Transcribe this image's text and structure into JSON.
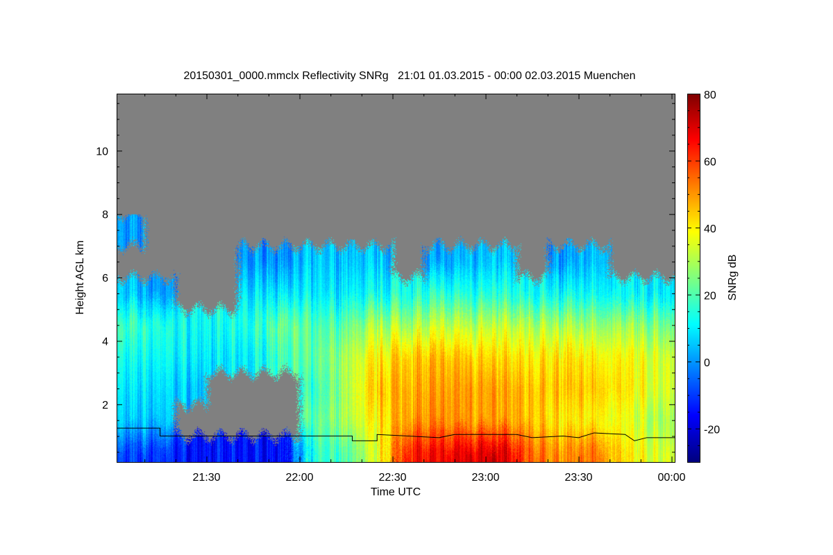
{
  "chart_data": {
    "type": "heatmap",
    "title": "20150301_0000.mmclx Reflectivity SNRg   21:01 01.03.2015 - 00:00 02.03.2015 Muenchen",
    "xlabel": "Time UTC",
    "ylabel": "Height AGL km",
    "colorbar_label": "SNRg dB",
    "x_range_minutes_after_2100": [
      1,
      181
    ],
    "y_range_km": [
      0.18,
      11.8
    ],
    "x_ticks": [
      {
        "label": "21:30",
        "min": 30
      },
      {
        "label": "22:00",
        "min": 60
      },
      {
        "label": "22:30",
        "min": 90
      },
      {
        "label": "23:00",
        "min": 120
      },
      {
        "label": "23:30",
        "min": 150
      },
      {
        "label": "00:00",
        "min": 180
      }
    ],
    "y_ticks": [
      {
        "label": "2",
        "km": 2
      },
      {
        "label": "4",
        "km": 4
      },
      {
        "label": "6",
        "km": 6
      },
      {
        "label": "8",
        "km": 8
      },
      {
        "label": "10",
        "km": 10
      }
    ],
    "colorbar_range": [
      -30,
      80
    ],
    "colorbar_ticks": [
      {
        "label": "80",
        "v": 80
      },
      {
        "label": "60",
        "v": 60
      },
      {
        "label": "40",
        "v": 40
      },
      {
        "label": "20",
        "v": 20
      },
      {
        "label": "0",
        "v": 0
      },
      {
        "label": "-20",
        "v": -20
      }
    ],
    "colormap": "jet",
    "no_signal_color": "#808080",
    "grid_time_centers_min": [
      5,
      15,
      25,
      35,
      45,
      55,
      65,
      75,
      85,
      95,
      105,
      115,
      125,
      135,
      145,
      155,
      165,
      175
    ],
    "grid_height_centers_km": [
      0.5,
      1.5,
      2.5,
      3.5,
      4.5,
      5.5,
      6.5,
      7.5
    ],
    "snr_db_grid": [
      [
        -10,
        5,
        8,
        12,
        18,
        5,
        null,
        0
      ],
      [
        -10,
        5,
        8,
        12,
        15,
        0,
        null,
        null
      ],
      [
        -15,
        null,
        5,
        10,
        12,
        null,
        null,
        null
      ],
      [
        -15,
        null,
        null,
        8,
        12,
        null,
        null,
        null
      ],
      [
        -15,
        null,
        null,
        10,
        15,
        8,
        0,
        null
      ],
      [
        -15,
        null,
        null,
        20,
        25,
        10,
        0,
        null
      ],
      [
        15,
        20,
        15,
        20,
        18,
        8,
        5,
        null
      ],
      [
        20,
        30,
        30,
        30,
        22,
        10,
        5,
        null
      ],
      [
        35,
        40,
        45,
        40,
        30,
        12,
        5,
        null
      ],
      [
        65,
        50,
        48,
        45,
        30,
        15,
        null,
        null
      ],
      [
        65,
        50,
        48,
        45,
        32,
        15,
        0,
        null
      ],
      [
        70,
        50,
        50,
        45,
        32,
        15,
        5,
        null
      ],
      [
        70,
        48,
        48,
        42,
        32,
        15,
        5,
        null
      ],
      [
        55,
        45,
        45,
        40,
        30,
        12,
        null,
        null
      ],
      [
        50,
        40,
        45,
        42,
        30,
        12,
        0,
        null
      ],
      [
        55,
        40,
        45,
        40,
        28,
        12,
        5,
        null
      ],
      [
        40,
        35,
        40,
        38,
        28,
        10,
        null,
        null
      ],
      [
        35,
        30,
        35,
        35,
        25,
        10,
        null,
        null
      ]
    ],
    "black_line": {
      "name": "cloud base / melting layer height",
      "points_min_km": [
        [
          1,
          1.25
        ],
        [
          15,
          1.25
        ],
        [
          15,
          1.0
        ],
        [
          77,
          1.0
        ],
        [
          77,
          0.85
        ],
        [
          85,
          0.85
        ],
        [
          85,
          1.05
        ],
        [
          95,
          1.0
        ],
        [
          105,
          0.95
        ],
        [
          110,
          1.05
        ],
        [
          120,
          1.05
        ],
        [
          130,
          1.05
        ],
        [
          135,
          0.95
        ],
        [
          145,
          1.0
        ],
        [
          150,
          0.95
        ],
        [
          155,
          1.1
        ],
        [
          165,
          1.05
        ],
        [
          168,
          0.85
        ],
        [
          172,
          0.95
        ],
        [
          181,
          0.95
        ]
      ]
    }
  }
}
